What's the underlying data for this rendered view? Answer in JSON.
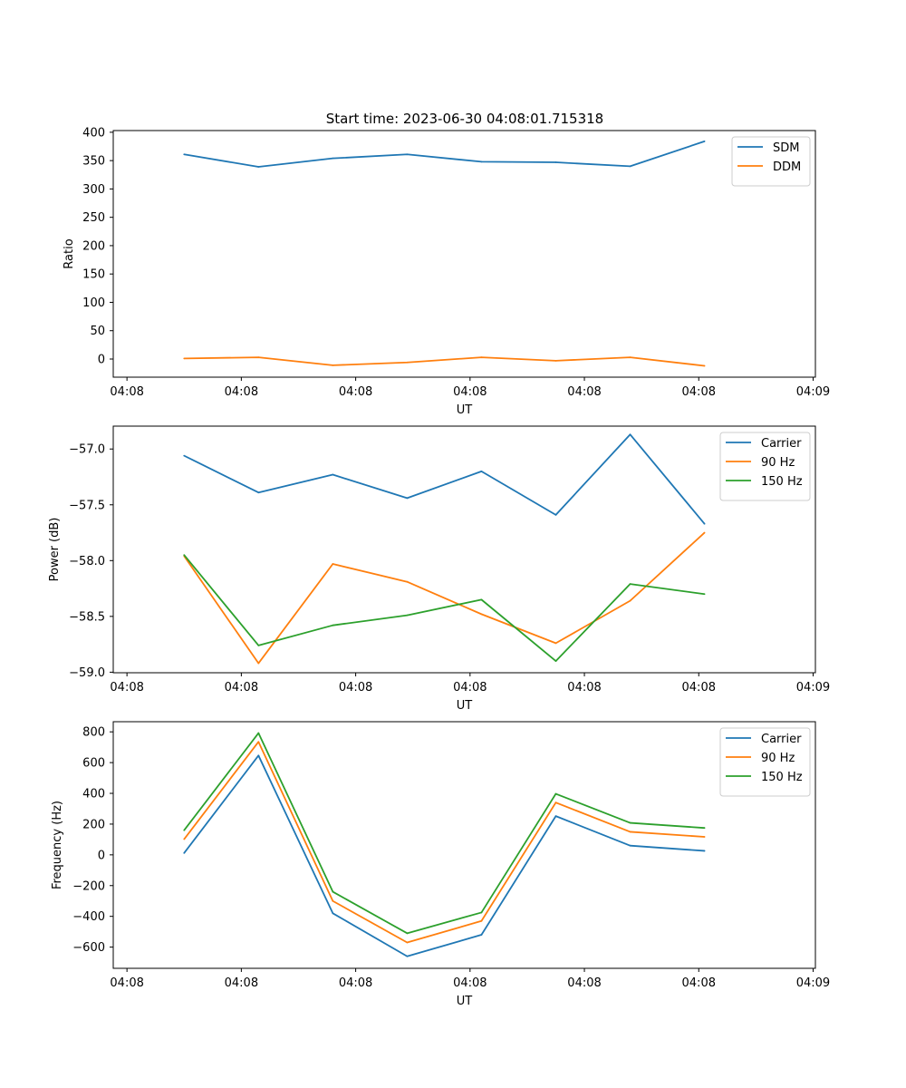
{
  "figure": {
    "title": "Start time: 2023-06-30 04:08:01.715318"
  },
  "colors": {
    "blue": "#1f77b4",
    "orange": "#ff7f0e",
    "green": "#2ca02c"
  },
  "chart_data": [
    {
      "type": "line",
      "title": "Start time: 2023-06-30 04:08:01.715318",
      "xlabel": "UT",
      "ylabel": "Ratio",
      "x_tick_labels": [
        "04:08",
        "04:08",
        "04:08",
        "04:08",
        "04:08",
        "04:08",
        "04:09"
      ],
      "x_ticks": [
        0,
        1,
        2,
        3,
        4,
        5,
        6
      ],
      "xlim": [
        -0.12,
        6.02
      ],
      "x": [
        0.5,
        1.15,
        1.8,
        2.45,
        3.1,
        3.75,
        4.4,
        5.05
      ],
      "ylim": [
        -32,
        403
      ],
      "y_ticks": [
        0,
        50,
        100,
        150,
        200,
        250,
        300,
        350,
        400
      ],
      "legend": "top-right",
      "grid": false,
      "series": [
        {
          "name": "SDM",
          "color": "#1f77b4",
          "values": [
            361,
            339,
            354,
            361,
            348,
            347,
            340,
            384
          ]
        },
        {
          "name": "DDM",
          "color": "#ff7f0e",
          "values": [
            1,
            3,
            -11,
            -6,
            3,
            -3,
            3,
            -12
          ]
        }
      ]
    },
    {
      "type": "line",
      "title": "",
      "xlabel": "UT",
      "ylabel": "Power (dB)",
      "x_tick_labels": [
        "04:08",
        "04:08",
        "04:08",
        "04:08",
        "04:08",
        "04:08",
        "04:09"
      ],
      "x_ticks": [
        0,
        1,
        2,
        3,
        4,
        5,
        6
      ],
      "xlim": [
        -0.12,
        6.02
      ],
      "x": [
        0.5,
        1.15,
        1.8,
        2.45,
        3.1,
        3.75,
        4.4,
        5.05
      ],
      "ylim": [
        -59.005,
        -56.795
      ],
      "y_ticks": [
        -59.0,
        -58.5,
        -58.0,
        -57.5,
        -57.0
      ],
      "y_tick_labels": [
        "−59.0",
        "−58.5",
        "−58.0",
        "−57.5",
        "−57.0"
      ],
      "legend": "top-right",
      "grid": false,
      "series": [
        {
          "name": "Carrier",
          "color": "#1f77b4",
          "values": [
            -57.06,
            -57.39,
            -57.23,
            -57.44,
            -57.2,
            -57.59,
            -56.87,
            -57.67
          ]
        },
        {
          "name": "90 Hz",
          "color": "#ff7f0e",
          "values": [
            -57.96,
            -58.92,
            -58.03,
            -58.19,
            -58.48,
            -58.74,
            -58.36,
            -57.75
          ]
        },
        {
          "name": "150 Hz",
          "color": "#2ca02c",
          "values": [
            -57.95,
            -58.76,
            -58.58,
            -58.49,
            -58.35,
            -58.9,
            -58.21,
            -58.3
          ]
        }
      ]
    },
    {
      "type": "line",
      "title": "",
      "xlabel": "UT",
      "ylabel": "Frequency (Hz)",
      "x_tick_labels": [
        "04:08",
        "04:08",
        "04:08",
        "04:08",
        "04:08",
        "04:08",
        "04:09"
      ],
      "x_ticks": [
        0,
        1,
        2,
        3,
        4,
        5,
        6
      ],
      "xlim": [
        -0.12,
        6.02
      ],
      "x": [
        0.5,
        1.15,
        1.8,
        2.45,
        3.1,
        3.75,
        4.4,
        5.05
      ],
      "ylim": [
        -738,
        866
      ],
      "y_ticks": [
        -600,
        -400,
        -200,
        0,
        200,
        400,
        600,
        800
      ],
      "y_tick_labels": [
        "−600",
        "−400",
        "−200",
        "0",
        "200",
        "400",
        "600",
        "800"
      ],
      "legend": "top-right",
      "grid": false,
      "series": [
        {
          "name": "Carrier",
          "color": "#1f77b4",
          "values": [
            12,
            646,
            -380,
            -660,
            -520,
            252,
            60,
            26
          ]
        },
        {
          "name": "90 Hz",
          "color": "#ff7f0e",
          "values": [
            102,
            735,
            -300,
            -570,
            -430,
            340,
            150,
            117
          ]
        },
        {
          "name": "150 Hz",
          "color": "#2ca02c",
          "values": [
            160,
            792,
            -240,
            -510,
            -375,
            397,
            208,
            175
          ]
        }
      ]
    }
  ]
}
